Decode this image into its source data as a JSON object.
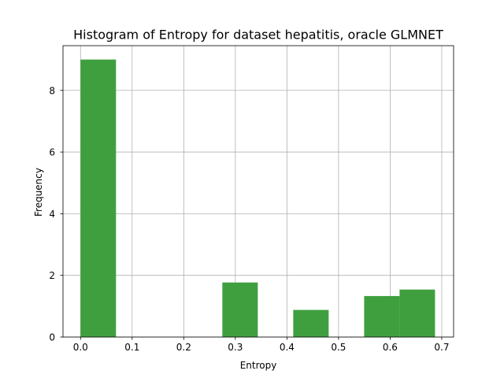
{
  "chart_data": {
    "type": "bar",
    "title": "Histogram of Entropy for dataset hepatitis, oracle GLMNET",
    "xlabel": "Entropy",
    "ylabel": "Frequency",
    "xlim": [
      -0.034,
      0.723
    ],
    "ylim": [
      0,
      9.45
    ],
    "grid": true,
    "bar_color": "#3f9f3f",
    "x_ticks": [
      "0.0",
      "0.1",
      "0.2",
      "0.3",
      "0.4",
      "0.5",
      "0.6",
      "0.7"
    ],
    "y_ticks": [
      "0",
      "2",
      "4",
      "6",
      "8"
    ],
    "bins": [
      {
        "x0": 0.0,
        "x1": 0.0687,
        "value": 9.0
      },
      {
        "x0": 0.0687,
        "x1": 0.1374,
        "value": 0
      },
      {
        "x0": 0.1374,
        "x1": 0.2061,
        "value": 0
      },
      {
        "x0": 0.2061,
        "x1": 0.2748,
        "value": 0
      },
      {
        "x0": 0.2748,
        "x1": 0.3435,
        "value": 1.77
      },
      {
        "x0": 0.3435,
        "x1": 0.4122,
        "value": 0
      },
      {
        "x0": 0.4122,
        "x1": 0.4809,
        "value": 0.88
      },
      {
        "x0": 0.4809,
        "x1": 0.5496,
        "value": 0
      },
      {
        "x0": 0.5496,
        "x1": 0.6183,
        "value": 1.33
      },
      {
        "x0": 0.6183,
        "x1": 0.687,
        "value": 1.54
      }
    ]
  }
}
